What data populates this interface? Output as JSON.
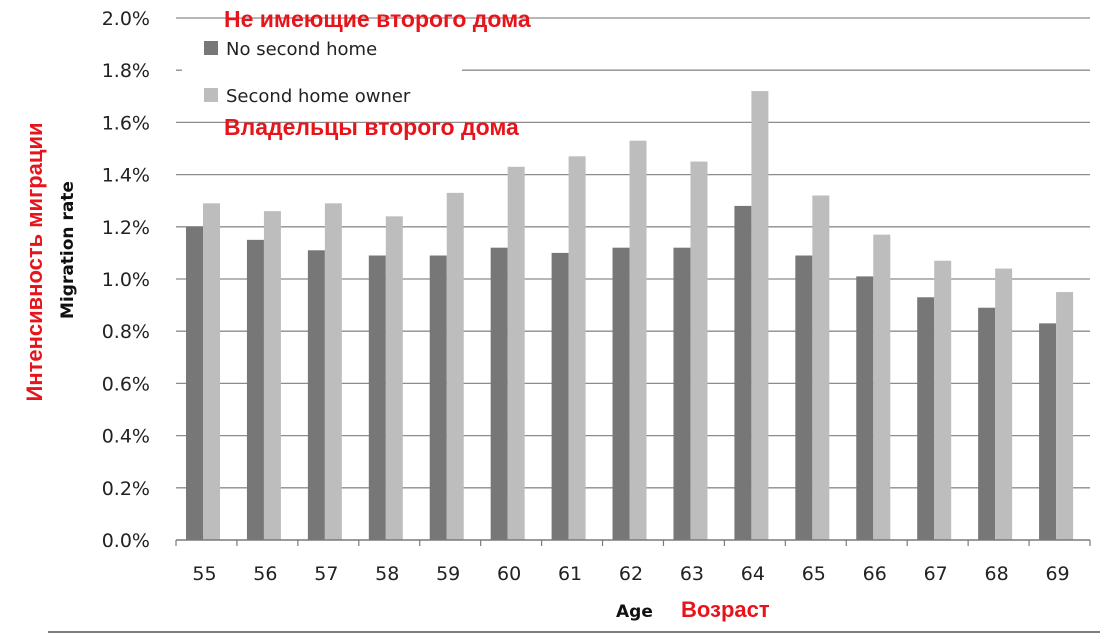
{
  "chart_data": {
    "type": "bar",
    "categories": [
      "55",
      "56",
      "57",
      "58",
      "59",
      "60",
      "61",
      "62",
      "63",
      "64",
      "65",
      "66",
      "67",
      "68",
      "69"
    ],
    "series": [
      {
        "name": "No second home",
        "color": "#777777",
        "values": [
          1.2,
          1.15,
          1.11,
          1.09,
          1.09,
          1.12,
          1.1,
          1.12,
          1.12,
          1.28,
          1.09,
          1.01,
          0.93,
          0.89,
          0.83
        ]
      },
      {
        "name": "Second home owner",
        "color": "#bdbdbd",
        "values": [
          1.29,
          1.26,
          1.29,
          1.24,
          1.33,
          1.43,
          1.47,
          1.53,
          1.45,
          1.72,
          1.32,
          1.17,
          1.07,
          1.04,
          0.95
        ]
      }
    ],
    "xlabel": "Age",
    "ylabel": "Migration rate",
    "ylim": [
      0,
      2.0
    ],
    "yticks": [
      "0.0%",
      "0.2%",
      "0.4%",
      "0.6%",
      "0.8%",
      "1.0%",
      "1.2%",
      "1.4%",
      "1.6%",
      "1.8%",
      "2.0%"
    ],
    "grid": true,
    "legend_position": "top-left"
  },
  "annotations": {
    "no_second_home_ru": "Не имеющие второго дома",
    "second_home_owner_ru": "Владельцы второго дома",
    "ylabel_ru": "Интенсивность миграции",
    "xlabel_ru": "Возраст",
    "color": "#e8141b"
  }
}
